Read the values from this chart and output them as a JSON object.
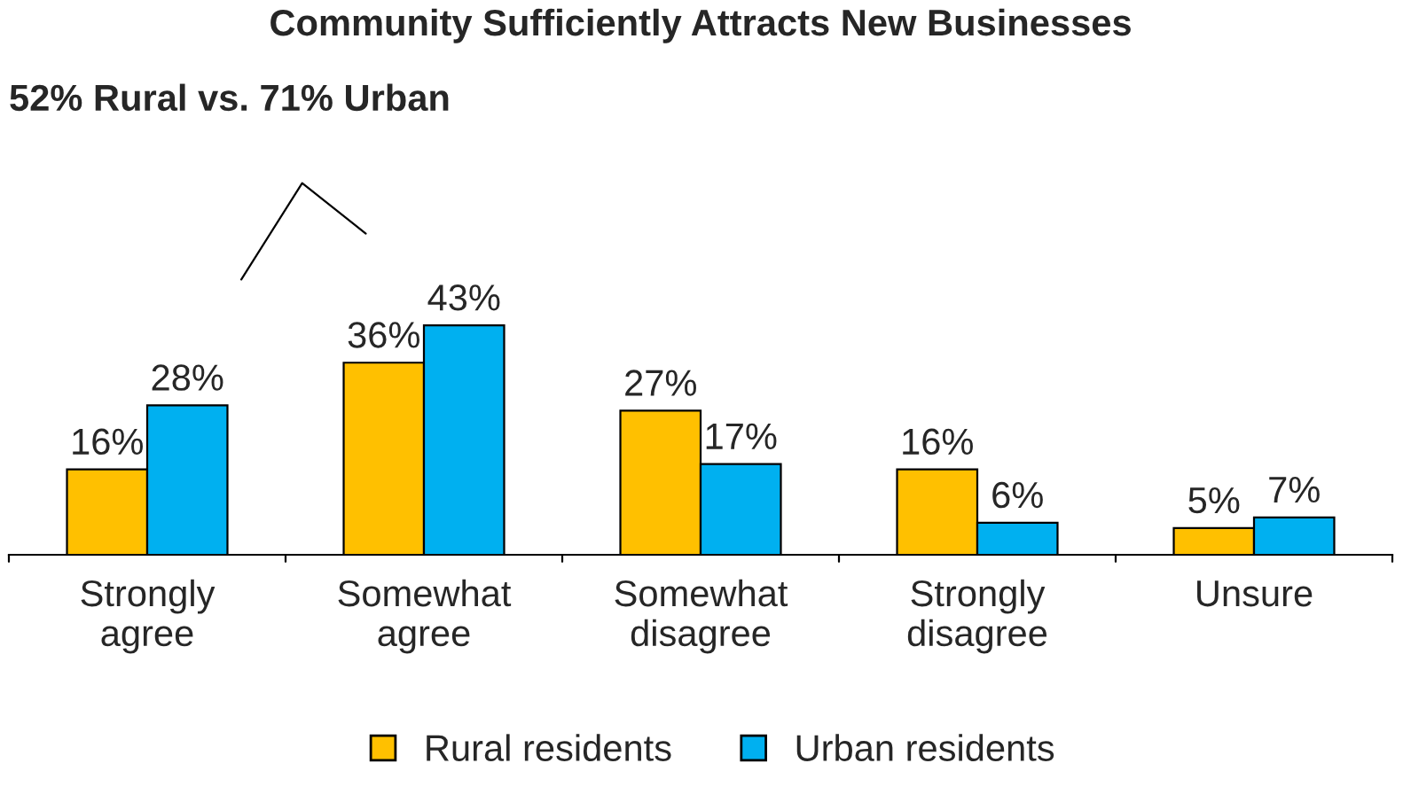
{
  "chart_data": {
    "type": "bar",
    "title": "Community Sufficiently Attracts New Businesses",
    "categories": [
      "Strongly\nagree",
      "Somewhat\nagree",
      "Somewhat\ndisagree",
      "Strongly\ndisagree",
      "Unsure"
    ],
    "series": [
      {
        "name": "Rural residents",
        "color": "#ffc000",
        "values": [
          16,
          36,
          27,
          16,
          5
        ],
        "value_labels": [
          "16%",
          "36%",
          "27%",
          "16%",
          "5%"
        ]
      },
      {
        "name": "Urban residents",
        "color": "#00b0f0",
        "values": [
          28,
          43,
          17,
          6,
          7
        ],
        "value_labels": [
          "28%",
          "43%",
          "17%",
          "6%",
          "7%"
        ]
      }
    ],
    "annotations": [
      "52% Rural vs. 71% Urban"
    ],
    "legend": "bottom",
    "grid": false
  }
}
